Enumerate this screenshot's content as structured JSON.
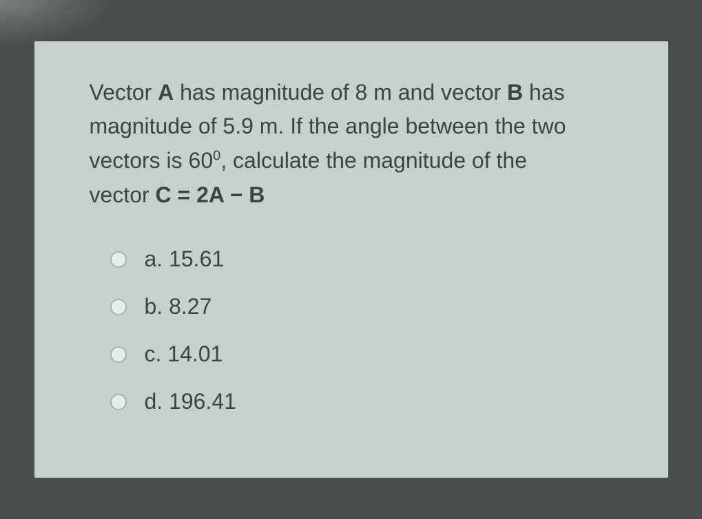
{
  "question": {
    "line1_pre": "Vector ",
    "line1_a": "A",
    "line1_mid": " has magnitude of 8 m and vector ",
    "line1_b": "B",
    "line1_post": " has",
    "line2": "magnitude of 5.9 m. If the angle between the two",
    "line3_pre": "vectors is 60",
    "line3_sup": "0",
    "line3_post": ", calculate the magnitude of the",
    "line4_pre": "vector ",
    "line4_eq": "C = 2A − B"
  },
  "options": [
    {
      "label": "a. 15.61"
    },
    {
      "label": "b. 8.27"
    },
    {
      "label": "c. 14.01"
    },
    {
      "label": "d. 196.41"
    }
  ],
  "styling": {
    "background_color": "#474d4a",
    "card_background": "#c8d0cd",
    "text_color": "#3a4442",
    "radio_border": "#a8b0ad",
    "radio_fill": "#e8ece9",
    "question_fontsize": 32,
    "option_fontsize": 32
  }
}
